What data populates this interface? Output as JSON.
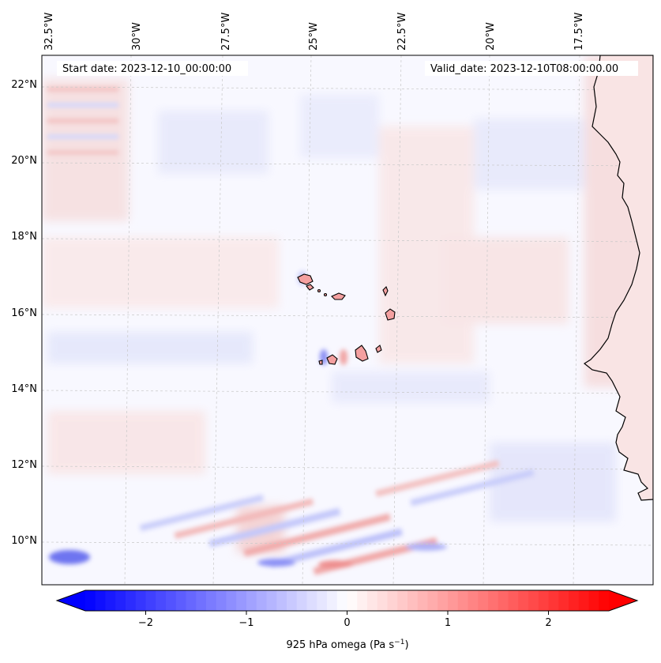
{
  "map": {
    "start_label": "Start date: 2023-12-10_00:00:00",
    "valid_label": "Valid_date: 2023-12-10T08:00:00.00",
    "lon_labels": [
      "32.5°W",
      "30°W",
      "27.5°W",
      "25°W",
      "22.5°W",
      "20°W",
      "17.5°W"
    ],
    "lat_labels": [
      "22°N",
      "20°N",
      "18°N",
      "16°N",
      "14°N",
      "12°N",
      "10°N"
    ],
    "lon_range": [
      -33.0,
      -15.5
    ],
    "lat_range": [
      8.9,
      22.8
    ]
  },
  "colorbar": {
    "label": "925 hPa omega (Pa s",
    "label_sup": "−1",
    "label_close": ")",
    "range": [
      -2.6,
      2.6
    ],
    "tick_values": [
      -2,
      -1,
      0,
      1,
      2
    ],
    "tick_labels": [
      "−2",
      "−1",
      "0",
      "1",
      "2"
    ],
    "colors": {
      "negative": "#0000ff",
      "zero": "#ffffff",
      "positive": "#ff0000"
    }
  },
  "colors": {
    "coastline": "#000000",
    "island_fill": "#f4a0a0",
    "grid": "#c8c8c8"
  }
}
